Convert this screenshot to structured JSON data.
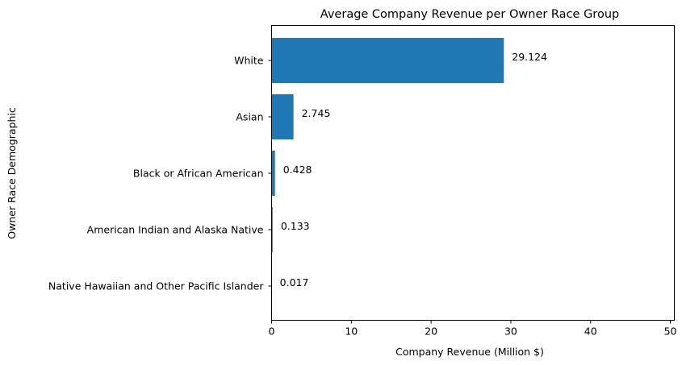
{
  "chart_data": {
    "type": "bar",
    "orientation": "horizontal",
    "title": "Average Company Revenue per Owner Race Group",
    "xlabel": "Company Revenue (Million $)",
    "ylabel": "Owner Race Demographic",
    "categories": [
      "White",
      "Asian",
      "Black or African American",
      "American Indian and Alaska Native",
      "Native Hawaiian and Other Pacific Islander"
    ],
    "values": [
      29.124,
      2.745,
      0.428,
      0.133,
      0.017
    ],
    "data_labels": [
      "29.124",
      "2.745",
      "0.428",
      "0.133",
      "0.017"
    ],
    "xlim": [
      0,
      50.5
    ],
    "xticks": [
      0,
      10,
      20,
      30,
      40,
      50
    ],
    "xtick_labels": [
      "0",
      "10",
      "20",
      "30",
      "40",
      "50"
    ],
    "grid": false,
    "bar_color": "#1f77b4"
  }
}
